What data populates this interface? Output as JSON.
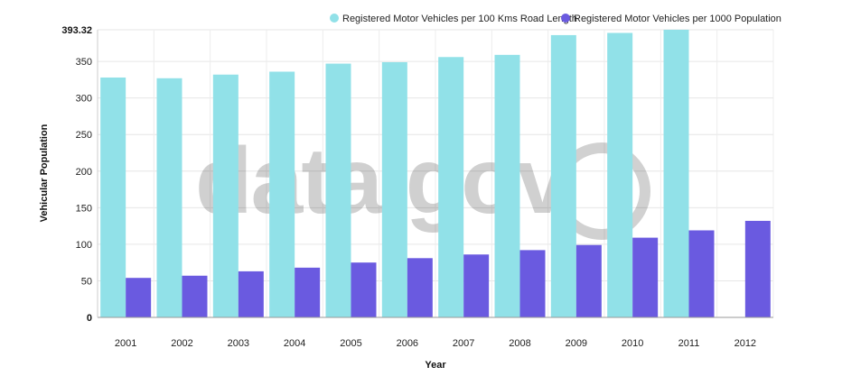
{
  "watermark": {
    "text": "data.gov"
  },
  "chart_data": {
    "type": "bar",
    "xlabel": "Year",
    "ylabel": "Vehicular Population",
    "categories": [
      "2001",
      "2002",
      "2003",
      "2004",
      "2005",
      "2006",
      "2007",
      "2008",
      "2009",
      "2010",
      "2011",
      "2012"
    ],
    "series": [
      {
        "name": "Registered Motor Vehicles per 100 Kms Road Length",
        "color": "#91e1e8",
        "values": [
          328,
          327,
          332,
          336,
          347,
          349,
          356,
          359,
          386,
          389,
          393.32,
          null
        ]
      },
      {
        "name": "Registered Motor Vehicles per 1000 Population",
        "color": "#6a5ae0",
        "values": [
          54,
          57,
          63,
          68,
          75,
          81,
          86,
          92,
          99,
          109,
          119,
          132
        ]
      }
    ],
    "ylim": [
      0,
      393.32
    ],
    "yticks": [
      0,
      50,
      100,
      150,
      200,
      250,
      300,
      350,
      393.32
    ],
    "grid": true,
    "legend_position": "top-right"
  }
}
